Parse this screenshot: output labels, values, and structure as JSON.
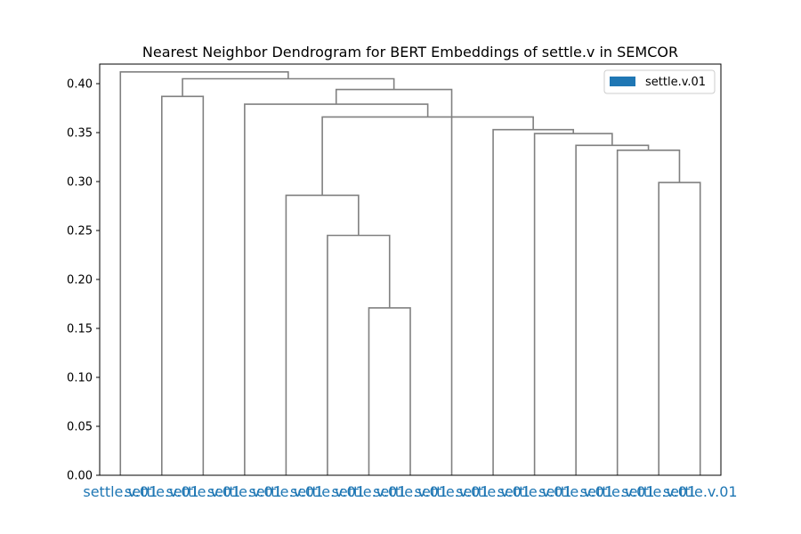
{
  "chart_data": {
    "type": "dendrogram",
    "title": "Nearest Neighbor Dendrogram for BERT Embeddings of settle.v in SEMCOR",
    "xlabel": "",
    "ylabel": "",
    "ylim": [
      0,
      0.42
    ],
    "yticks": [
      0.0,
      0.05,
      0.1,
      0.15,
      0.2,
      0.25,
      0.3,
      0.35,
      0.4
    ],
    "ytick_labels": [
      "0.00",
      "0.05",
      "0.10",
      "0.15",
      "0.20",
      "0.25",
      "0.30",
      "0.35",
      "0.40"
    ],
    "grid": false,
    "legend": {
      "position": "top-right",
      "entries": [
        {
          "label": "settle.v.01",
          "color": "#1f77b4"
        }
      ]
    },
    "leaves": [
      {
        "label": "settle.v.01",
        "sense": "settle.v.01"
      },
      {
        "label": "settle.v.01",
        "sense": "settle.v.01"
      },
      {
        "label": "settle.v.01",
        "sense": "settle.v.01"
      },
      {
        "label": "settle.v.01",
        "sense": "settle.v.01"
      },
      {
        "label": "settle.v.01",
        "sense": "settle.v.01"
      },
      {
        "label": "settle.v.01",
        "sense": "settle.v.01"
      },
      {
        "label": "settle.v.01",
        "sense": "settle.v.01"
      },
      {
        "label": "settle.v.01",
        "sense": "settle.v.01"
      },
      {
        "label": "settle.v.01",
        "sense": "settle.v.01"
      },
      {
        "label": "settle.v.01",
        "sense": "settle.v.01"
      },
      {
        "label": "settle.v.01",
        "sense": "settle.v.01"
      },
      {
        "label": "settle.v.01",
        "sense": "settle.v.01"
      },
      {
        "label": "settle.v.01",
        "sense": "settle.v.01"
      },
      {
        "label": "settle.v.01",
        "sense": "settle.v.01"
      },
      {
        "label": "settle.v.01",
        "sense": "settle.v.01"
      }
    ],
    "merges": [
      {
        "left": 6,
        "right": 7,
        "height": 0.171
      },
      {
        "left": 5,
        "right": 15,
        "height": 0.245
      },
      {
        "left": 4,
        "right": 16,
        "height": 0.286
      },
      {
        "left": 13,
        "right": 14,
        "height": 0.299
      },
      {
        "left": 12,
        "right": 18,
        "height": 0.332
      },
      {
        "left": 11,
        "right": 19,
        "height": 0.337
      },
      {
        "left": 10,
        "right": 20,
        "height": 0.349
      },
      {
        "left": 9,
        "right": 21,
        "height": 0.353
      },
      {
        "left": 17,
        "right": 22,
        "height": 0.366
      },
      {
        "left": 3,
        "right": 23,
        "height": 0.379
      },
      {
        "left": 1,
        "right": 2,
        "height": 0.387
      },
      {
        "left": 8,
        "right": 24,
        "height": 0.394
      },
      {
        "left": 25,
        "right": 26,
        "height": 0.405
      },
      {
        "left": 0,
        "right": 27,
        "height": 0.412
      }
    ],
    "link_color": "#808080",
    "label_color": "#1f77b4"
  }
}
